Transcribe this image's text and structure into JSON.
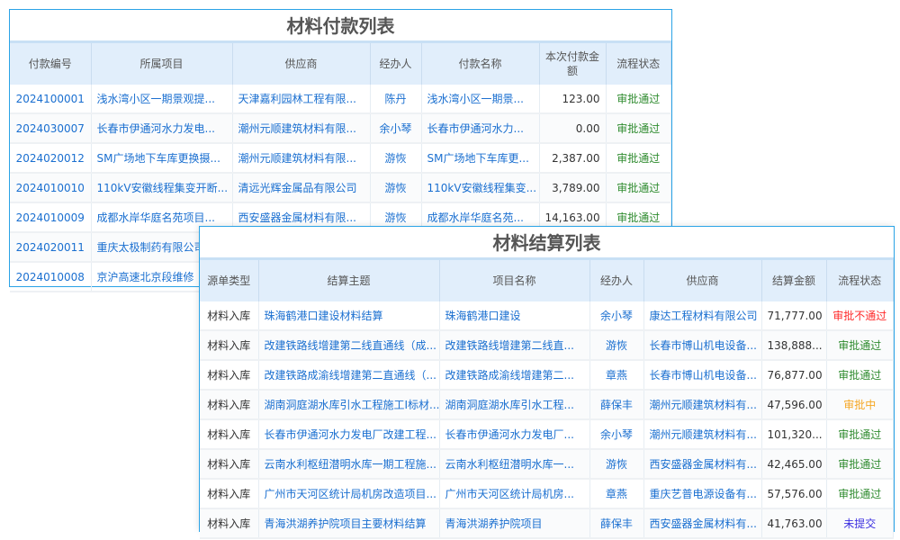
{
  "payment": {
    "title": "材料付款列表",
    "headers": [
      "付款编号",
      "所属项目",
      "供应商",
      "经办人",
      "付款名称",
      "本次付款金额",
      "流程状态"
    ],
    "rows": [
      [
        "2024100001",
        "浅水湾小区一期景观提...",
        "天津嘉利园林工程有限...",
        "陈丹",
        "浅水湾小区一期景...",
        "123.00",
        "审批通过"
      ],
      [
        "2024030007",
        "长春市伊通河水力发电...",
        "潮州元顺建筑材料有限...",
        "余小琴",
        "长春市伊通河水力...",
        "0.00",
        "审批通过"
      ],
      [
        "2024020012",
        "SM广场地下车库更换摄...",
        "潮州元顺建筑材料有限...",
        "游恢",
        "SM广场地下车库更...",
        "2,387.00",
        "审批通过"
      ],
      [
        "2024010010",
        "110kV安徽线程集变开断...",
        "清远光辉金属品有限公司",
        "游恢",
        "110kV安徽线程集变...",
        "3,789.00",
        "审批通过"
      ],
      [
        "2024010009",
        "成都水岸华庭名苑项目...",
        "西安盛器金属材料有限...",
        "游恢",
        "成都水岸华庭名苑...",
        "14,163.00",
        "审批通过"
      ],
      [
        "2024020011",
        "重庆太极制药有限公司",
        "",
        "",
        "",
        "",
        ""
      ],
      [
        "2024010008",
        "京沪高速北京段维修",
        "",
        "",
        "",
        "",
        ""
      ]
    ]
  },
  "settlement": {
    "title": "材料结算列表",
    "headers": [
      "源单类型",
      "结算主题",
      "项目名称",
      "经办人",
      "供应商",
      "结算金额",
      "流程状态"
    ],
    "rows": [
      [
        "材料入库",
        "珠海鹤港口建设材料结算",
        "珠海鹤港口建设",
        "余小琴",
        "康达工程材料有限公司",
        "71,777.00",
        "审批不通过"
      ],
      [
        "材料入库",
        "改建铁路线增建第二线直通线（成...",
        "改建铁路线增建第二线直...",
        "游恢",
        "长春市博山机电设备...",
        "138,888...",
        "审批通过"
      ],
      [
        "材料入库",
        "改建铁路成渝线增建第二直通线（...",
        "改建铁路成渝线增建第二...",
        "章燕",
        "长春市博山机电设备...",
        "76,877.00",
        "审批通过"
      ],
      [
        "材料入库",
        "湖南洞庭湖水库引水工程施工I标材...",
        "湖南洞庭湖水库引水工程...",
        "薛保丰",
        "潮州元顺建筑材料有...",
        "47,596.00",
        "审批中"
      ],
      [
        "材料入库",
        "长春市伊通河水力发电厂改建工程...",
        "长春市伊通河水力发电厂...",
        "余小琴",
        "潮州元顺建筑材料有...",
        "101,320...",
        "审批通过"
      ],
      [
        "材料入库",
        "云南水利枢纽潜明水库一期工程施...",
        "云南水利枢纽潜明水库一...",
        "游恢",
        "西安盛器金属材料有...",
        "42,465.00",
        "审批通过"
      ],
      [
        "材料入库",
        "广州市天河区统计局机房改造项目...",
        "广州市天河区统计局机房...",
        "章燕",
        "重庆艺普电源设备有...",
        "57,576.00",
        "审批通过"
      ],
      [
        "材料入库",
        "青海洪湖养护院项目主要材料结算",
        "青海洪湖养护院项目",
        "薛保丰",
        "西安盛器金属材料有...",
        "41,763.00",
        "未提交"
      ]
    ]
  },
  "status_colors": {
    "审批通过": "#2e8b2e",
    "审批不通过": "#ff2a2a",
    "审批中": "#f5a623",
    "未提交": "#3b2fe0"
  }
}
